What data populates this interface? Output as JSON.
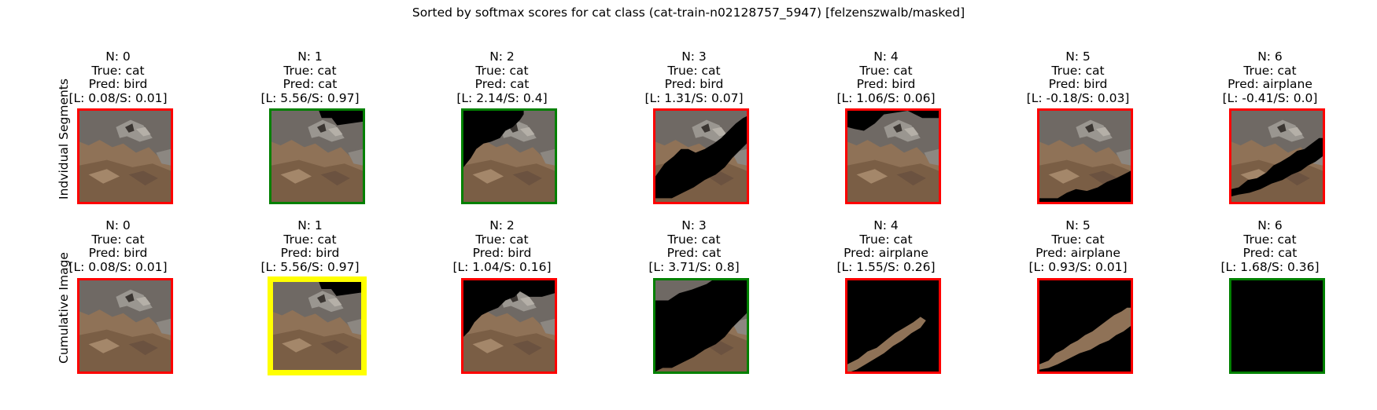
{
  "figure": {
    "title": "Sorted by softmax scores for cat class (cat-train-n02128757_5947) [felzenszwalb/masked]"
  },
  "colors": {
    "wrong": "#ff0000",
    "correct": "#008000",
    "best": "#ffff00",
    "mask": "#000000",
    "image_base": "#8f7257",
    "image_rock": "#7f7c78"
  },
  "rows": [
    {
      "label": "Indvidual Segments",
      "panels": [
        {
          "n": "N: 0",
          "true": "True: cat",
          "pred": "Pred: bird",
          "scores": "[L: 0.08/S: 0.01]",
          "status": "wrong"
        },
        {
          "n": "N: 1",
          "true": "True: cat",
          "pred": "Pred: cat",
          "scores": "[L: 5.56/S: 0.97]",
          "status": "correct"
        },
        {
          "n": "N: 2",
          "true": "True: cat",
          "pred": "Pred: cat",
          "scores": "[L: 2.14/S: 0.4]",
          "status": "correct"
        },
        {
          "n": "N: 3",
          "true": "True: cat",
          "pred": "Pred: bird",
          "scores": "[L: 1.31/S: 0.07]",
          "status": "wrong"
        },
        {
          "n": "N: 4",
          "true": "True: cat",
          "pred": "Pred: bird",
          "scores": "[L: 1.06/S: 0.06]",
          "status": "wrong"
        },
        {
          "n": "N: 5",
          "true": "True: cat",
          "pred": "Pred: bird",
          "scores": "[L: -0.18/S: 0.03]",
          "status": "wrong"
        },
        {
          "n": "N: 6",
          "true": "True: cat",
          "pred": "Pred: airplane",
          "scores": "[L: -0.41/S: 0.0]",
          "status": "wrong"
        }
      ]
    },
    {
      "label": "Cumulative Image",
      "panels": [
        {
          "n": "N: 0",
          "true": "True: cat",
          "pred": "Pred: bird",
          "scores": "[L: 0.08/S: 0.01]",
          "status": "wrong"
        },
        {
          "n": "N: 1",
          "true": "True: cat",
          "pred": "Pred: bird",
          "scores": "[L: 5.56/S: 0.97]",
          "status": "best"
        },
        {
          "n": "N: 2",
          "true": "True: cat",
          "pred": "Pred: bird",
          "scores": "[L: 1.04/S: 0.16]",
          "status": "wrong"
        },
        {
          "n": "N: 3",
          "true": "True: cat",
          "pred": "Pred: cat",
          "scores": "[L: 3.71/S: 0.8]",
          "status": "correct"
        },
        {
          "n": "N: 4",
          "true": "True: cat",
          "pred": "Pred: airplane",
          "scores": "[L: 1.55/S: 0.26]",
          "status": "wrong"
        },
        {
          "n": "N: 5",
          "true": "True: cat",
          "pred": "Pred: airplane",
          "scores": "[L: 0.93/S: 0.01]",
          "status": "wrong"
        },
        {
          "n": "N: 6",
          "true": "True: cat",
          "pred": "Pred: cat",
          "scores": "[L: 1.68/S: 0.36]",
          "status": "correct"
        }
      ]
    }
  ]
}
